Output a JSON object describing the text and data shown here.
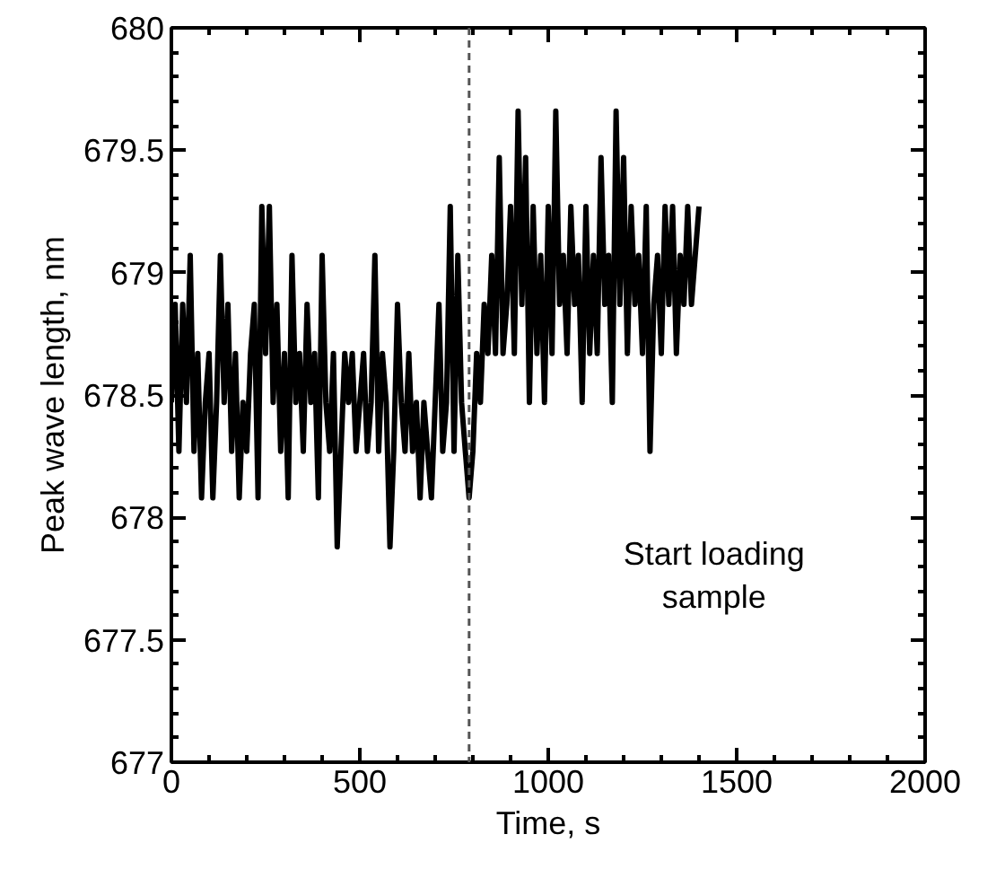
{
  "chart_data": {
    "type": "line",
    "xlabel": "Time, s",
    "ylabel": "Peak wave length, nm",
    "xlim": [
      0,
      2000
    ],
    "xticks": [
      0,
      500,
      1000,
      1500,
      2000
    ],
    "ylim": [
      677,
      680
    ],
    "yticks": [
      677,
      677.5,
      678,
      678.5,
      679,
      679.5,
      680
    ],
    "grid": false,
    "marker": "none",
    "line_style": "solid",
    "x": [
      0,
      10,
      20,
      30,
      40,
      50,
      60,
      70,
      80,
      90,
      100,
      110,
      120,
      130,
      140,
      150,
      160,
      170,
      180,
      190,
      200,
      210,
      220,
      230,
      240,
      250,
      260,
      270,
      280,
      290,
      300,
      310,
      320,
      330,
      340,
      350,
      360,
      370,
      380,
      390,
      400,
      410,
      420,
      430,
      440,
      450,
      460,
      470,
      480,
      490,
      500,
      510,
      520,
      530,
      540,
      550,
      560,
      570,
      580,
      590,
      600,
      610,
      620,
      630,
      640,
      650,
      660,
      670,
      680,
      690,
      700,
      710,
      720,
      730,
      740,
      750,
      760,
      770,
      780,
      790,
      800,
      810,
      820,
      830,
      840,
      850,
      860,
      870,
      880,
      890,
      900,
      910,
      920,
      930,
      940,
      950,
      960,
      970,
      980,
      990,
      1000,
      1010,
      1020,
      1030,
      1040,
      1050,
      1060,
      1070,
      1080,
      1090,
      1100,
      1110,
      1120,
      1130,
      1140,
      1150,
      1160,
      1170,
      1180,
      1190,
      1200,
      1210,
      1220,
      1230,
      1240,
      1250,
      1260,
      1270,
      1280,
      1290,
      1300,
      1310,
      1320,
      1330,
      1340,
      1350,
      1360,
      1370,
      1380,
      1390,
      1400
    ],
    "series": [
      {
        "color": "#000000",
        "values": [
          678.47,
          678.87,
          678.27,
          678.87,
          678.47,
          679.07,
          678.27,
          678.67,
          678.08,
          678.47,
          678.67,
          678.08,
          678.47,
          679.07,
          678.47,
          678.87,
          678.27,
          678.67,
          678.08,
          678.47,
          678.27,
          678.67,
          678.87,
          678.08,
          679.27,
          678.67,
          679.27,
          678.47,
          678.87,
          678.27,
          678.67,
          678.08,
          679.07,
          678.47,
          678.67,
          678.27,
          678.87,
          678.47,
          678.67,
          678.08,
          679.07,
          678.47,
          678.27,
          678.67,
          677.88,
          678.27,
          678.67,
          678.47,
          678.67,
          678.27,
          678.47,
          678.67,
          678.27,
          678.47,
          679.07,
          678.27,
          678.67,
          678.47,
          677.88,
          678.27,
          678.87,
          678.47,
          678.27,
          678.67,
          678.27,
          678.47,
          678.08,
          678.47,
          678.27,
          678.08,
          678.47,
          678.87,
          678.27,
          678.47,
          679.27,
          678.27,
          679.07,
          678.47,
          678.27,
          678.08,
          678.27,
          678.67,
          678.47,
          678.87,
          678.67,
          679.07,
          678.67,
          679.47,
          678.67,
          678.87,
          679.27,
          678.67,
          679.66,
          678.87,
          679.47,
          678.47,
          679.27,
          678.67,
          679.07,
          678.47,
          679.27,
          678.67,
          679.66,
          678.87,
          679.07,
          678.67,
          679.27,
          678.87,
          679.07,
          678.47,
          679.27,
          678.67,
          679.07,
          678.67,
          679.47,
          678.87,
          679.07,
          678.47,
          679.66,
          678.87,
          679.47,
          678.67,
          679.27,
          678.87,
          679.07,
          678.67,
          679.27,
          678.27,
          678.87,
          679.07,
          678.67,
          679.27,
          678.87,
          679.27,
          678.67,
          679.07,
          678.87,
          679.27,
          678.87,
          679.07,
          679.27
        ]
      }
    ],
    "ref_lines": [
      {
        "axis": "x",
        "value": 790,
        "color": "#555555",
        "line_style": "dashed"
      }
    ],
    "annotations": [
      "Start loading\nsample"
    ]
  }
}
